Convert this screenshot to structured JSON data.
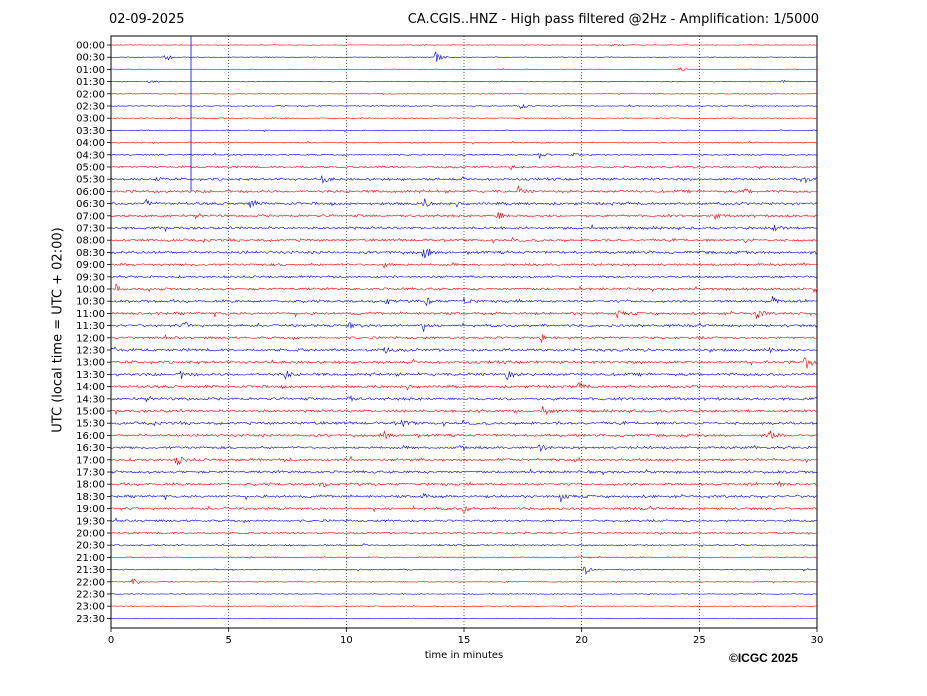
{
  "chart_data": {
    "type": "line",
    "date": "02-09-2025",
    "title": "CA.CGIS..HNZ - High pass filtered @2Hz - Amplification: 1/5000",
    "xlabel": "time in minutes",
    "ylabel": "UTC (local time = UTC + 02:00)",
    "xlim": [
      0,
      30
    ],
    "x_ticks": [
      "0",
      "5",
      "10",
      "15",
      "20",
      "25",
      "30"
    ],
    "x_tick_values": [
      0,
      5,
      10,
      15,
      20,
      25,
      30
    ],
    "rows": [
      "00:00",
      "00:30",
      "01:00",
      "01:30",
      "02:00",
      "02:30",
      "03:00",
      "03:30",
      "04:00",
      "04:30",
      "05:00",
      "05:30",
      "06:00",
      "06:30",
      "07:00",
      "07:30",
      "08:00",
      "08:30",
      "09:00",
      "09:30",
      "10:00",
      "10:30",
      "11:00",
      "11:30",
      "12:00",
      "12:30",
      "13:00",
      "13:30",
      "14:00",
      "14:30",
      "15:00",
      "15:30",
      "16:00",
      "16:30",
      "17:00",
      "17:30",
      "18:00",
      "18:30",
      "19:00",
      "19:30",
      "20:00",
      "20:30",
      "21:00",
      "21:30",
      "22:00",
      "22:30",
      "23:00",
      "23:30"
    ],
    "trace_colors": [
      "#ff0000",
      "#0000ff"
    ],
    "vertical_gridlines": "dotted at 5-minute intervals",
    "noise_levels": [
      0.4,
      0.4,
      0.5,
      0.5,
      0.5,
      0.6,
      0.6,
      0.5,
      0.7,
      0.9,
      1.2,
      1.4,
      1.6,
      1.6,
      1.5,
      1.5,
      1.5,
      1.6,
      1.4,
      1.3,
      1.4,
      1.5,
      1.5,
      1.5,
      1.4,
      1.6,
      1.6,
      1.7,
      1.6,
      1.6,
      1.6,
      1.6,
      1.5,
      1.5,
      1.6,
      1.5,
      1.5,
      1.5,
      1.4,
      1.3,
      1.1,
      0.9,
      0.8,
      0.7,
      0.6,
      0.5,
      0.4,
      0.3
    ],
    "events": [
      {
        "row": 1,
        "minute": 2.3,
        "amp": 6
      },
      {
        "row": 1,
        "minute": 13.8,
        "amp": 8
      },
      {
        "row": 0,
        "minute": 21.3,
        "amp": 2
      },
      {
        "row": 2,
        "minute": 24.2,
        "amp": 2
      },
      {
        "row": 3,
        "minute": 1.6,
        "amp": 2
      },
      {
        "row": 3,
        "minute": 28.5,
        "amp": 2
      },
      {
        "row": 5,
        "minute": 17.4,
        "amp": 4
      },
      {
        "row": 9,
        "minute": 18.2,
        "amp": 4
      },
      {
        "row": 9,
        "minute": 19.6,
        "amp": 3
      },
      {
        "row": 10,
        "minute": 17.0,
        "amp": 3
      },
      {
        "row": 11,
        "minute": 1.9,
        "amp": 4
      },
      {
        "row": 11,
        "minute": 9.0,
        "amp": 5
      },
      {
        "row": 11,
        "minute": 29.5,
        "amp": 5
      },
      {
        "row": 12,
        "minute": 17.3,
        "amp": 5
      },
      {
        "row": 12,
        "minute": 26.9,
        "amp": 4
      },
      {
        "row": 13,
        "minute": 1.5,
        "amp": 5
      },
      {
        "row": 13,
        "minute": 5.9,
        "amp": 6
      },
      {
        "row": 13,
        "minute": 13.3,
        "amp": 5
      },
      {
        "row": 14,
        "minute": 16.4,
        "amp": 6
      },
      {
        "row": 14,
        "minute": 25.6,
        "amp": 4
      },
      {
        "row": 15,
        "minute": 28.2,
        "amp": 4
      },
      {
        "row": 16,
        "minute": 26.8,
        "amp": 4
      },
      {
        "row": 17,
        "minute": 13.3,
        "amp": 8
      },
      {
        "row": 18,
        "minute": 11.6,
        "amp": 4
      },
      {
        "row": 20,
        "minute": 0.2,
        "amp": 4
      },
      {
        "row": 20,
        "minute": 29.9,
        "amp": 5
      },
      {
        "row": 21,
        "minute": 11.6,
        "amp": 6
      },
      {
        "row": 21,
        "minute": 13.4,
        "amp": 6
      },
      {
        "row": 21,
        "minute": 15.0,
        "amp": 5
      },
      {
        "row": 21,
        "minute": 28.1,
        "amp": 5
      },
      {
        "row": 22,
        "minute": 21.5,
        "amp": 4
      },
      {
        "row": 22,
        "minute": 27.4,
        "amp": 7
      },
      {
        "row": 23,
        "minute": 3.1,
        "amp": 4
      },
      {
        "row": 23,
        "minute": 10.1,
        "amp": 4
      },
      {
        "row": 23,
        "minute": 13.2,
        "amp": 5
      },
      {
        "row": 24,
        "minute": 18.3,
        "amp": 4
      },
      {
        "row": 25,
        "minute": 0.1,
        "amp": 5
      },
      {
        "row": 25,
        "minute": 11.6,
        "amp": 4
      },
      {
        "row": 25,
        "minute": 28.0,
        "amp": 5
      },
      {
        "row": 26,
        "minute": 29.5,
        "amp": 9
      },
      {
        "row": 27,
        "minute": 3.0,
        "amp": 5
      },
      {
        "row": 27,
        "minute": 7.4,
        "amp": 5
      },
      {
        "row": 27,
        "minute": 16.8,
        "amp": 6
      },
      {
        "row": 28,
        "minute": 19.9,
        "amp": 6
      },
      {
        "row": 29,
        "minute": 10.1,
        "amp": 4
      },
      {
        "row": 30,
        "minute": 15.7,
        "amp": 4
      },
      {
        "row": 30,
        "minute": 18.4,
        "amp": 4
      },
      {
        "row": 31,
        "minute": 12.4,
        "amp": 4
      },
      {
        "row": 32,
        "minute": 11.6,
        "amp": 5
      },
      {
        "row": 32,
        "minute": 28.0,
        "amp": 5
      },
      {
        "row": 33,
        "minute": 14.8,
        "amp": 4
      },
      {
        "row": 33,
        "minute": 18.2,
        "amp": 4
      },
      {
        "row": 34,
        "minute": 2.8,
        "amp": 6
      },
      {
        "row": 34,
        "minute": 10.2,
        "amp": 4
      },
      {
        "row": 34,
        "minute": 19.7,
        "amp": 4
      },
      {
        "row": 36,
        "minute": 8.9,
        "amp": 4
      },
      {
        "row": 36,
        "minute": 28.3,
        "amp": 5
      },
      {
        "row": 37,
        "minute": 13.2,
        "amp": 5
      },
      {
        "row": 37,
        "minute": 19.1,
        "amp": 6
      },
      {
        "row": 38,
        "minute": 15.0,
        "amp": 5
      },
      {
        "row": 43,
        "minute": 20.1,
        "amp": 7
      },
      {
        "row": 44,
        "minute": 0.9,
        "amp": 6
      }
    ],
    "glitch": {
      "minute": 3.4,
      "from_row": 0,
      "to_row": 12
    }
  },
  "copyright": "©ICGC 2025"
}
